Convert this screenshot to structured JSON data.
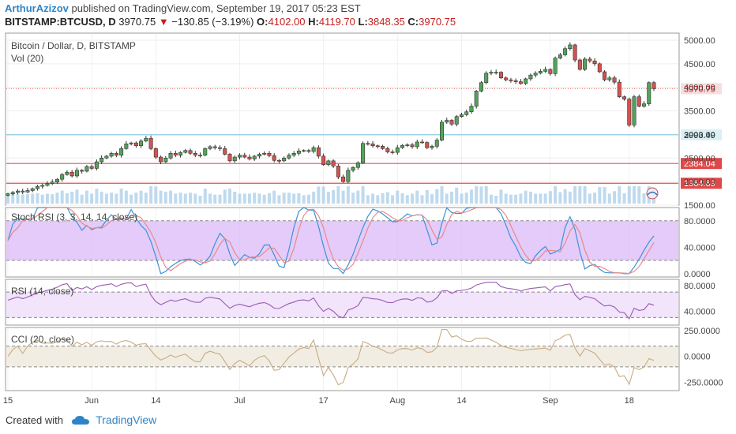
{
  "header": {
    "author": "ArthurAzizov",
    "published_text": "published on TradingView.com, September 19, 2017 05:23 EST",
    "symbol": "BITSTAMP:BTCUSD, D",
    "last": "3970.75",
    "change": "−130.85 (−3.19%)",
    "o_label": "O:",
    "o": "4102.00",
    "h_label": "H:",
    "h": "4119.70",
    "l_label": "L:",
    "l": "3848.35",
    "c_label": "C:",
    "c": "3970.75"
  },
  "main_pane": {
    "title": "Bitcoin / Dollar, D, BITSTAMP",
    "vol_label": "Vol (20)",
    "y_ticks": [
      1500,
      2000,
      2500,
      3000,
      3500,
      4000,
      4500,
      5000
    ],
    "y_tick_labels": [
      "1500.00",
      "2000.00",
      "2500.00",
      "3000.00",
      "3500.00",
      "4000.00",
      "4500.00",
      "5000.00"
    ],
    "price_range": [
      1500,
      5150
    ],
    "last_price_label": "3970.75",
    "horizontal_levels": [
      {
        "label": "2993.49",
        "value": 2993.49,
        "color": "#7ec8e3"
      },
      {
        "label": "2384.04",
        "value": 2384.04,
        "color": "#e05252"
      },
      {
        "label": "1964.69",
        "value": 1964.69,
        "color": "#e05252"
      }
    ]
  },
  "stoch_pane": {
    "title": "Stoch RSI (3, 3, 14, 14, close)",
    "y_ticks": [
      0,
      40,
      80
    ],
    "y_tick_labels": [
      "0.0000",
      "40.0000",
      "80.0000"
    ],
    "range": [
      -5,
      100
    ],
    "band": [
      20,
      80
    ]
  },
  "rsi_pane": {
    "title": "RSI (14, close)",
    "y_ticks": [
      40,
      80
    ],
    "y_tick_labels": [
      "40.0000",
      "80.0000"
    ],
    "range": [
      18,
      90
    ],
    "band": [
      30,
      70
    ]
  },
  "cci_pane": {
    "title": "CCI (20, close)",
    "y_ticks": [
      -250,
      0,
      250
    ],
    "y_tick_labels": [
      "-250.0000",
      "0.0000",
      "250.0000"
    ],
    "range": [
      -330,
      280
    ],
    "band": [
      -100,
      100
    ]
  },
  "x_axis": {
    "labels": [
      "15",
      "Jun",
      "14",
      "Jul",
      "17",
      "Aug",
      "14",
      "Sep",
      "18"
    ],
    "positions_day_index": [
      0,
      17,
      30,
      47,
      64,
      79,
      92,
      110,
      126
    ]
  },
  "footer": {
    "created_with": "Created with",
    "brand": "TradingView"
  },
  "colors": {
    "up": "#53a35a",
    "down": "#d4524f",
    "stoch_k": "#3c93d8",
    "stoch_d": "#e58b8b",
    "stoch_band": "#d8b5f7",
    "rsi_line": "#9a59b5",
    "rsi_band": "#efe1fb",
    "cci_line": "#c8ab82",
    "cci_band": "#f1ebe0",
    "volume": "#a9cde8"
  },
  "chart_data": {
    "type": "candlestick",
    "title": "Bitcoin / Dollar, D, BITSTAMP",
    "x_labels": [
      "15",
      "Jun",
      "14",
      "Jul",
      "17",
      "Aug",
      "14",
      "Sep",
      "18"
    ],
    "closes": [
      1740,
      1770,
      1800,
      1780,
      1810,
      1850,
      1900,
      1920,
      1960,
      1990,
      2050,
      2150,
      2200,
      2120,
      2240,
      2220,
      2320,
      2280,
      2420,
      2500,
      2540,
      2600,
      2560,
      2700,
      2800,
      2820,
      2760,
      2860,
      2920,
      2700,
      2520,
      2420,
      2500,
      2600,
      2560,
      2620,
      2660,
      2600,
      2560,
      2560,
      2700,
      2740,
      2720,
      2700,
      2580,
      2440,
      2520,
      2560,
      2520,
      2480,
      2540,
      2580,
      2600,
      2550,
      2450,
      2440,
      2500,
      2560,
      2600,
      2650,
      2660,
      2640,
      2720,
      2540,
      2360,
      2440,
      2330,
      2100,
      2000,
      2240,
      2300,
      2400,
      2810,
      2800,
      2760,
      2750,
      2700,
      2630,
      2620,
      2720,
      2770,
      2780,
      2740,
      2840,
      2830,
      2720,
      2750,
      2880,
      3260,
      3300,
      3220,
      3380,
      3420,
      3480,
      3600,
      3920,
      4100,
      4300,
      4320,
      4320,
      4200,
      4160,
      4140,
      4120,
      4080,
      4180,
      4260,
      4300,
      4340,
      4380,
      4290,
      4620,
      4690,
      4820,
      4900,
      4580,
      4380,
      4600,
      4560,
      4500,
      4330,
      4160,
      4200,
      4110,
      3800,
      3750,
      3200,
      3800,
      3600,
      3650,
      4100,
      3970.75
    ],
    "levels": [
      2993.49,
      2384.04,
      1964.69
    ],
    "ylim": [
      1500,
      5150
    ]
  }
}
